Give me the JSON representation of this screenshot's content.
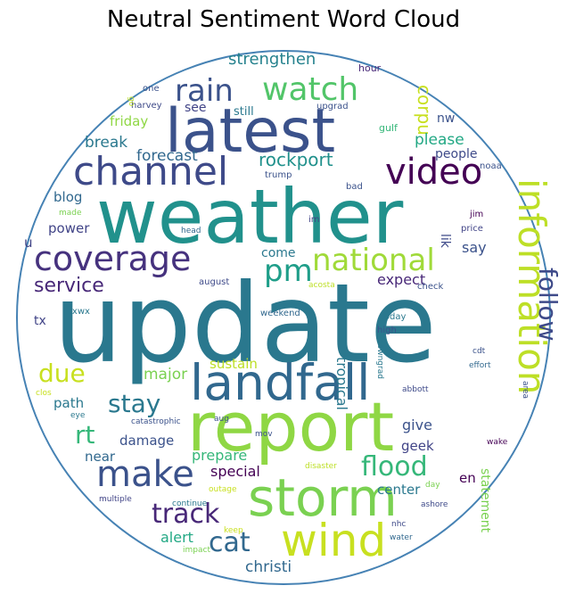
{
  "chart_data": {
    "type": "word_cloud",
    "title": "Neutral Sentiment Word Cloud",
    "mask_shape": "circle",
    "outline_color": "#4682b4",
    "colormap": "viridis",
    "words": [
      {
        "text": "update",
        "color": "#2a788e"
      },
      {
        "text": "weather",
        "color": "#21918c"
      },
      {
        "text": "report",
        "color": "#8fd744"
      },
      {
        "text": "latest",
        "color": "#3b528b"
      },
      {
        "text": "storm",
        "color": "#7ad151"
      },
      {
        "text": "landfall",
        "color": "#31688e"
      },
      {
        "text": "wind",
        "color": "#c8e020"
      },
      {
        "text": "channel",
        "color": "#3e4a89"
      },
      {
        "text": "information",
        "color": "#bddf26"
      },
      {
        "text": "video",
        "color": "#440154"
      },
      {
        "text": "make",
        "color": "#3b528b"
      },
      {
        "text": "coverage",
        "color": "#46327e"
      },
      {
        "text": "watch",
        "color": "#52c569"
      },
      {
        "text": "rain",
        "color": "#3b528b"
      },
      {
        "text": "pm",
        "color": "#1f9e89"
      },
      {
        "text": "national",
        "color": "#a0da39"
      },
      {
        "text": "flood",
        "color": "#35b779"
      },
      {
        "text": "track",
        "color": "#482878"
      },
      {
        "text": "cat",
        "color": "#31688e"
      },
      {
        "text": "stay",
        "color": "#2a788e"
      },
      {
        "text": "follow",
        "color": "#3e4a89"
      },
      {
        "text": "due",
        "color": "#c8e020"
      },
      {
        "text": "rt",
        "color": "#35b779"
      },
      {
        "text": "service",
        "color": "#482878"
      },
      {
        "text": "strengthen",
        "color": "#26828e"
      },
      {
        "text": "rockport",
        "color": "#21918c"
      },
      {
        "text": "corpu",
        "color": "#c8e020"
      },
      {
        "text": "forecast",
        "color": "#31688e"
      },
      {
        "text": "break",
        "color": "#2a788e"
      },
      {
        "text": "friday",
        "color": "#8fd744"
      },
      {
        "text": "see",
        "color": "#414487"
      },
      {
        "text": "still",
        "color": "#2a788e"
      },
      {
        "text": "upgrad",
        "color": "#3b528b"
      },
      {
        "text": "please",
        "color": "#22a884"
      },
      {
        "text": "people",
        "color": "#3e4a89"
      },
      {
        "text": "nw",
        "color": "#3b528b"
      },
      {
        "text": "blog",
        "color": "#31688e"
      },
      {
        "text": "power",
        "color": "#414487"
      },
      {
        "text": "come",
        "color": "#2a788e"
      },
      {
        "text": "say",
        "color": "#3b528b"
      },
      {
        "text": "lik",
        "color": "#3e4a89"
      },
      {
        "text": "expect",
        "color": "#482878"
      },
      {
        "text": "tropical",
        "color": "#2a788e"
      },
      {
        "text": "tx",
        "color": "#414487"
      },
      {
        "text": "major",
        "color": "#7ad151"
      },
      {
        "text": "sustain",
        "color": "#bddf26"
      },
      {
        "text": "path",
        "color": "#2a788e"
      },
      {
        "text": "damage",
        "color": "#3b528b"
      },
      {
        "text": "give",
        "color": "#3b528b"
      },
      {
        "text": "geek",
        "color": "#414487"
      },
      {
        "text": "statement",
        "color": "#7ad151"
      },
      {
        "text": "prepare",
        "color": "#35b779"
      },
      {
        "text": "special",
        "color": "#440154"
      },
      {
        "text": "center",
        "color": "#2a788e"
      },
      {
        "text": "en",
        "color": "#440154"
      },
      {
        "text": "near",
        "color": "#31688e"
      },
      {
        "text": "alert",
        "color": "#22a884"
      },
      {
        "text": "christi",
        "color": "#31688e"
      },
      {
        "text": "u",
        "color": "#414487"
      },
      {
        "text": "hour",
        "color": "#482878"
      },
      {
        "text": "one",
        "color": "#3b528b"
      },
      {
        "text": "harvey",
        "color": "#3e4a89"
      },
      {
        "text": "gulf",
        "color": "#35b779"
      },
      {
        "text": "noaa",
        "color": "#3b528b"
      },
      {
        "text": "trump",
        "color": "#3b528b"
      },
      {
        "text": "bad",
        "color": "#3b528b"
      },
      {
        "text": "made",
        "color": "#7ad151"
      },
      {
        "text": "head",
        "color": "#31688e"
      },
      {
        "text": "im",
        "color": "#414487"
      },
      {
        "text": "jim",
        "color": "#440154"
      },
      {
        "text": "price",
        "color": "#414487"
      },
      {
        "text": "august",
        "color": "#3e4a89"
      },
      {
        "text": "acosta",
        "color": "#bddf26"
      },
      {
        "text": "check",
        "color": "#3b528b"
      },
      {
        "text": "txwx",
        "color": "#2a788e"
      },
      {
        "text": "weekend",
        "color": "#31688e"
      },
      {
        "text": "today",
        "color": "#2a788e"
      },
      {
        "text": "high",
        "color": "#3b528b"
      },
      {
        "text": "cdt",
        "color": "#3b528b"
      },
      {
        "text": "effort",
        "color": "#31688e"
      },
      {
        "text": "downgrad",
        "color": "#2a788e"
      },
      {
        "text": "clos",
        "color": "#c8e020"
      },
      {
        "text": "eye",
        "color": "#2a788e"
      },
      {
        "text": "abbott",
        "color": "#3e4a89"
      },
      {
        "text": "area",
        "color": "#3b528b"
      },
      {
        "text": "catastrophic",
        "color": "#3b528b"
      },
      {
        "text": "aug",
        "color": "#3b528b"
      },
      {
        "text": "wake",
        "color": "#440154"
      },
      {
        "text": "mov",
        "color": "#3b528b"
      },
      {
        "text": "disaster",
        "color": "#bddf26"
      },
      {
        "text": "outage",
        "color": "#c8e020"
      },
      {
        "text": "day",
        "color": "#7ad151"
      },
      {
        "text": "multiple",
        "color": "#414487"
      },
      {
        "text": "continue",
        "color": "#2a788e"
      },
      {
        "text": "ashore",
        "color": "#3e4a89"
      },
      {
        "text": "keep",
        "color": "#c8e020"
      },
      {
        "text": "nhc",
        "color": "#3e4a89"
      },
      {
        "text": "water",
        "color": "#31688e"
      },
      {
        "text": "impact",
        "color": "#7ad151"
      },
      {
        "text": "go",
        "color": "#bddf26"
      }
    ]
  }
}
